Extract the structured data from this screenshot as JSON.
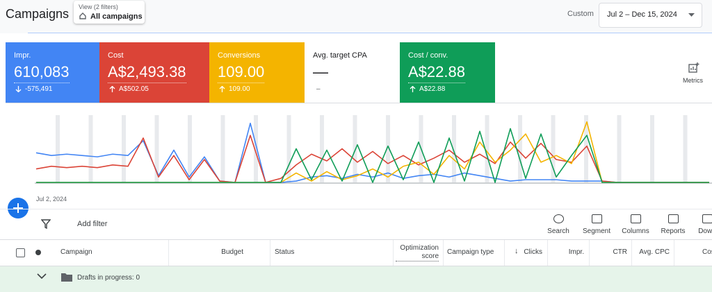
{
  "header": {
    "title": "Campaigns",
    "view": {
      "label": "View (2 filters)",
      "value": "All campaigns"
    },
    "range_label": "Custom",
    "date_range": "Jul 2 – Dec 15, 2024"
  },
  "metrics": [
    {
      "label": "Impr.",
      "value": "610,083",
      "change": "-575,491",
      "color": "#4285f4"
    },
    {
      "label": "Cost",
      "value": "A$2,493.38",
      "change": "A$502.05",
      "color": "#db4437"
    },
    {
      "label": "Conversions",
      "value": "109.00",
      "change": "109.00",
      "color": "#f4b400"
    },
    {
      "label": "Avg. target CPA",
      "value": "—",
      "change": "–"
    },
    {
      "label": "Cost / conv.",
      "value": "A$22.88",
      "change": "A$22.88",
      "color": "#0f9d58"
    }
  ],
  "metrics_button": "Metrics",
  "trend": {
    "start_label": "Jul 2, 2024",
    "ylim": [
      0,
      100
    ],
    "series": [
      {
        "color": "#4285f4",
        "values": [
          44,
          40,
          42,
          40,
          38,
          42,
          40,
          62,
          10,
          48,
          8,
          38,
          2,
          0,
          88,
          0,
          0,
          2,
          8,
          10,
          6,
          12,
          8,
          14,
          6,
          10,
          12,
          8,
          14,
          10,
          6,
          2,
          4,
          4,
          4,
          2,
          2,
          2,
          0,
          0,
          0,
          0,
          0,
          0,
          0
        ]
      },
      {
        "color": "#db4437",
        "values": [
          20,
          24,
          22,
          24,
          22,
          26,
          24,
          66,
          8,
          40,
          4,
          34,
          2,
          0,
          70,
          0,
          6,
          26,
          42,
          32,
          50,
          30,
          46,
          28,
          40,
          26,
          36,
          48,
          30,
          42,
          28,
          60,
          36,
          58,
          34,
          30,
          54,
          2,
          0,
          0,
          0,
          0,
          0,
          0,
          0
        ]
      },
      {
        "color": "#f4b400",
        "values": [
          0,
          0,
          0,
          0,
          0,
          0,
          0,
          0,
          0,
          0,
          0,
          0,
          0,
          0,
          0,
          0,
          0,
          14,
          2,
          16,
          4,
          10,
          20,
          8,
          24,
          30,
          12,
          40,
          20,
          60,
          30,
          48,
          72,
          30,
          40,
          28,
          90,
          0,
          0,
          0,
          0,
          0,
          0,
          0,
          0
        ]
      },
      {
        "color": "#0f9d58",
        "values": [
          0,
          0,
          0,
          0,
          0,
          0,
          0,
          0,
          0,
          0,
          0,
          0,
          0,
          0,
          0,
          0,
          0,
          50,
          4,
          48,
          2,
          56,
          0,
          54,
          4,
          60,
          0,
          66,
          2,
          76,
          0,
          80,
          6,
          72,
          8,
          40,
          70,
          0,
          0,
          0,
          0,
          0,
          0,
          0,
          0
        ]
      }
    ]
  },
  "toolbar": {
    "filter": "Add filter",
    "actions": [
      "Search",
      "Segment",
      "Columns",
      "Reports",
      "Down"
    ]
  },
  "table": {
    "columns": [
      "Campaign",
      "Budget",
      "Status",
      "Optimization score",
      "Campaign type",
      "Clicks",
      "Impr.",
      "CTR",
      "Avg. CPC",
      "Cos"
    ],
    "rows": [
      [
        "Drafts in progress: 0"
      ]
    ]
  }
}
